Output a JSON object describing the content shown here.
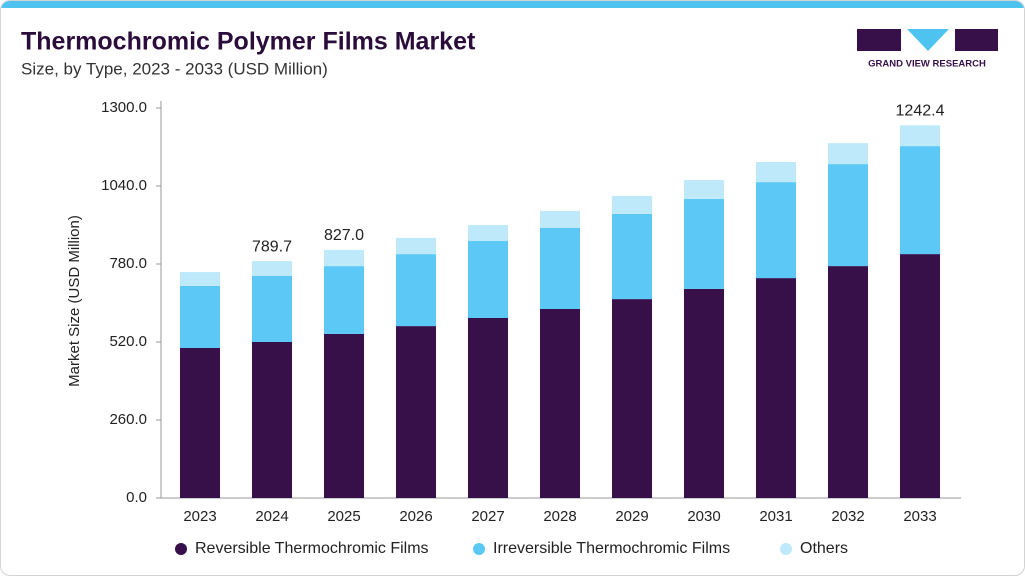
{
  "brand": "GRAND VIEW RESEARCH",
  "chart_data": {
    "type": "stacked-bar",
    "title": "Thermochromic Polymer Films Market",
    "subtitle": "Size, by Type, 2023 - 2033 (USD Million)",
    "y_label": "Market Size (USD Million)",
    "categories": [
      "2023",
      "2024",
      "2025",
      "2026",
      "2027",
      "2028",
      "2029",
      "2030",
      "2031",
      "2032",
      "2033"
    ],
    "series": [
      {
        "name": "Reversible Thermochromic Films",
        "color": "#37104a",
        "values": [
          500,
          520,
          547,
          573,
          600,
          630,
          663,
          697,
          733,
          773,
          813
        ]
      },
      {
        "name": "Irreversible Thermochromic Films",
        "color": "#5bc8f5",
        "values": [
          207,
          220,
          226,
          240,
          257,
          270,
          284,
          300,
          320,
          340,
          360
        ]
      },
      {
        "name": "Others",
        "color": "#bde9fa",
        "values": [
          46,
          49.7,
          54,
          54,
          53,
          57,
          60,
          63,
          67,
          70,
          69.4
        ]
      }
    ],
    "annotations": [
      {
        "category": "2024",
        "value": 789.7,
        "label": "789.7"
      },
      {
        "category": "2025",
        "value": 827.0,
        "label": "827.0"
      },
      {
        "category": "2033",
        "value": 1242.4,
        "label": "1242.4"
      }
    ],
    "ylim": [
      0,
      1300
    ],
    "yticks": [
      {
        "value": 0,
        "label": "0.0"
      },
      {
        "value": 260,
        "label": "260.0"
      },
      {
        "value": 520,
        "label": "520.0"
      },
      {
        "value": 780,
        "label": "780.0"
      },
      {
        "value": 1040,
        "label": "1040.0"
      },
      {
        "value": 1300,
        "label": "1300.0"
      }
    ],
    "grid": false,
    "legend": "bottom"
  }
}
